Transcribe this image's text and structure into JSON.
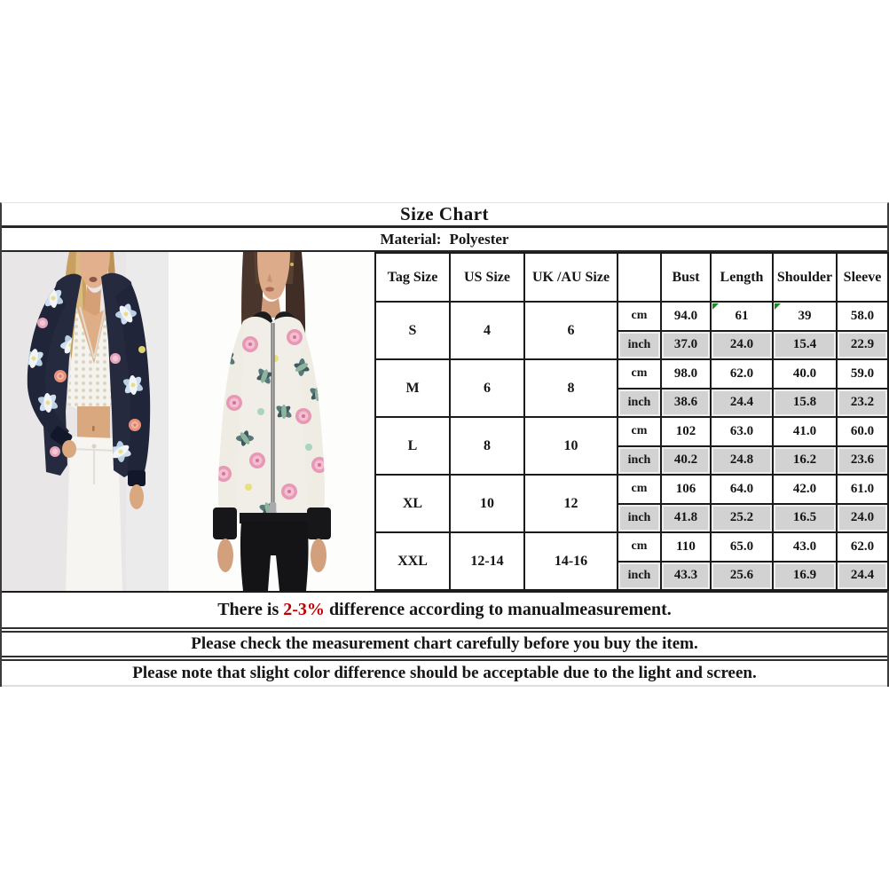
{
  "page": {
    "title": "Size Chart",
    "material_label": "Material:",
    "material_value": "Polyester"
  },
  "photos": {
    "left": {
      "description": "model wearing navy floral bomber jacket, white crochet crop top, white jeans"
    },
    "right": {
      "description": "model wearing cream floral bomber jacket with black trim, black pants"
    }
  },
  "size_table": {
    "headers": [
      "Tag Size",
      "US Size",
      "UK /AU Size",
      "",
      "Bust",
      "Length",
      "Shoulder",
      "Sleeve"
    ],
    "unit_cm": "cm",
    "unit_inch": "inch",
    "sizes": [
      {
        "tag": "S",
        "us": "4",
        "uk_au": "6",
        "cm": [
          "94.0",
          "61",
          "39",
          "58.0"
        ],
        "inch": [
          "37.0",
          "24.0",
          "15.4",
          "22.9"
        ],
        "cm_flags": [
          1,
          2
        ]
      },
      {
        "tag": "M",
        "us": "6",
        "uk_au": "8",
        "cm": [
          "98.0",
          "62.0",
          "40.0",
          "59.0"
        ],
        "inch": [
          "38.6",
          "24.4",
          "15.8",
          "23.2"
        ]
      },
      {
        "tag": "L",
        "us": "8",
        "uk_au": "10",
        "cm": [
          "102",
          "63.0",
          "41.0",
          "60.0"
        ],
        "inch": [
          "40.2",
          "24.8",
          "16.2",
          "23.6"
        ]
      },
      {
        "tag": "XL",
        "us": "10",
        "uk_au": "12",
        "cm": [
          "106",
          "64.0",
          "42.0",
          "61.0"
        ],
        "inch": [
          "41.8",
          "25.2",
          "16.5",
          "24.0"
        ]
      },
      {
        "tag": "XXL",
        "us": "12-14",
        "uk_au": "14-16",
        "cm": [
          "110",
          "65.0",
          "43.0",
          "62.0"
        ],
        "inch": [
          "43.3",
          "25.6",
          "16.9",
          "24.4"
        ]
      }
    ]
  },
  "notes": [
    {
      "prefix": "There is ",
      "highlight": "2-3%",
      "suffix": " difference according to manualmeasurement."
    },
    {
      "text": "Please check the measurement chart carefully before you buy the item."
    },
    {
      "text": "Please note that slight color difference should be acceptable due to the light and screen."
    }
  ],
  "colors": {
    "highlight_red": "#c00000",
    "inch_row_bg": "#d2d2d2",
    "table_border": "#1b1b1b",
    "left_photo_bg": "#e8e6e7",
    "right_photo_bg": "#fdfdfc"
  }
}
